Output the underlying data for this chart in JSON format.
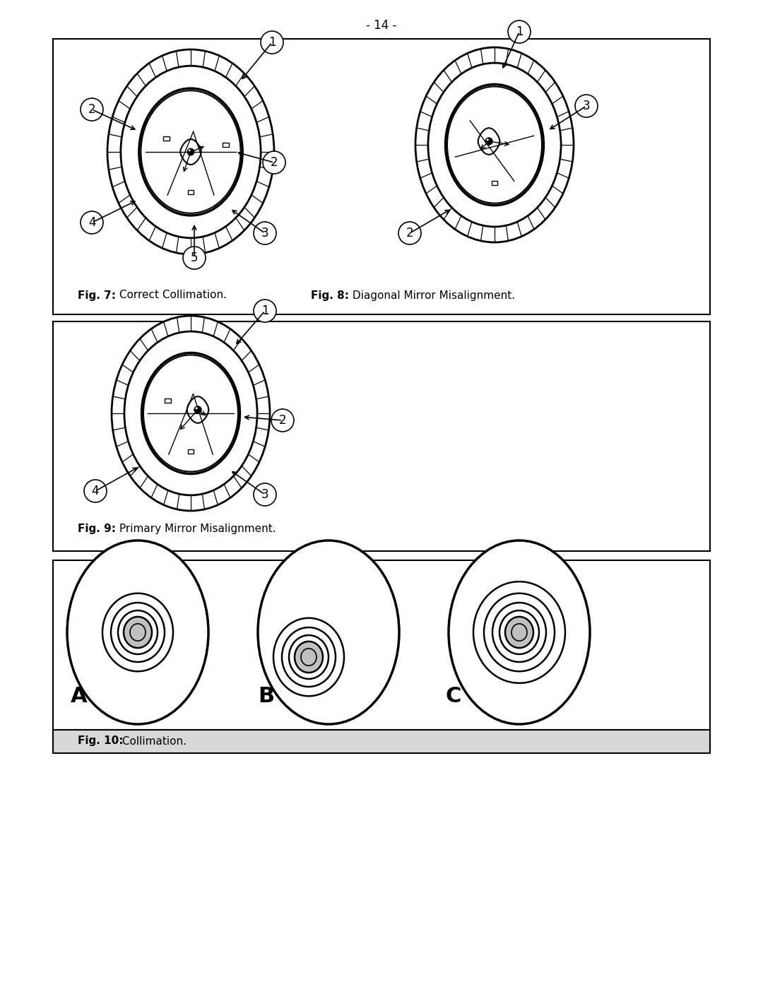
{
  "page_number": "- 14 -",
  "fig7_title_bold": "Fig. 7:",
  "fig7_title_rest": " Correct Collimation.",
  "fig8_title_bold": "Fig. 8:",
  "fig8_title_rest": " Diagonal Mirror Misalignment.",
  "fig9_title_bold": "Fig. 9:",
  "fig9_title_rest": " Primary Mirror Misalignment.",
  "fig10_title_bold": "Fig. 10:",
  "fig10_title_rest": " Collimation.",
  "bg_color": "#ffffff",
  "border_color": "#000000",
  "gray_fill": "#b0b0b0",
  "light_gray": "#c0c0c0",
  "label_A": "A",
  "label_B": "B",
  "label_C": "C"
}
